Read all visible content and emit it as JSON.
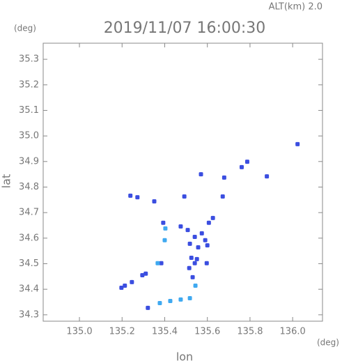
{
  "chart_data": {
    "type": "scatter",
    "title": "2019/11/07 16:00:30",
    "subtitle": "ALT(km) 2.0",
    "x_label": "lon",
    "y_label": "lat",
    "x_unit": "(deg)",
    "y_unit": "(deg)",
    "xlim": [
      134.83,
      136.14
    ],
    "ylim": [
      34.275,
      35.363
    ],
    "xticks": [
      {
        "value": 135,
        "label": "135.0"
      },
      135.2,
      135.4,
      135.6,
      135.8,
      {
        "value": 136,
        "label": "136.0"
      }
    ],
    "yticks": [
      34.3,
      34.4,
      34.5,
      34.6,
      34.7,
      34.8,
      34.9,
      {
        "value": 35,
        "label": "35.0"
      },
      35.1,
      35.2,
      35.3
    ],
    "series": [
      {
        "color": "#3b4ee0",
        "x": [
          136.023,
          135.787,
          135.761,
          135.879,
          135.57,
          135.679,
          135.239,
          135.272,
          135.351,
          135.492,
          135.672,
          135.626,
          135.607,
          135.393,
          135.475,
          135.508,
          135.541,
          135.574,
          135.59,
          135.557,
          135.518,
          135.6,
          135.525,
          135.541,
          135.515,
          135.551,
          135.597,
          135.384,
          135.531,
          135.295,
          135.246,
          135.213,
          135.311,
          135.197,
          135.321
        ],
        "y": [
          34.968,
          34.899,
          34.878,
          34.842,
          34.85,
          34.837,
          34.766,
          34.76,
          34.744,
          34.763,
          34.763,
          34.679,
          34.66,
          34.66,
          34.646,
          34.632,
          34.605,
          34.619,
          34.592,
          34.564,
          34.578,
          34.572,
          34.523,
          34.502,
          34.483,
          34.518,
          34.502,
          34.502,
          34.447,
          34.455,
          34.428,
          34.414,
          34.461,
          34.406,
          34.327
        ]
      },
      {
        "color": "#3fa9f0",
        "x": [
          135.403,
          135.4,
          135.544,
          135.377,
          135.426,
          135.475,
          135.518,
          135.367
        ],
        "y": [
          34.638,
          34.592,
          34.414,
          34.346,
          34.354,
          34.36,
          34.365,
          34.502
        ]
      }
    ]
  }
}
